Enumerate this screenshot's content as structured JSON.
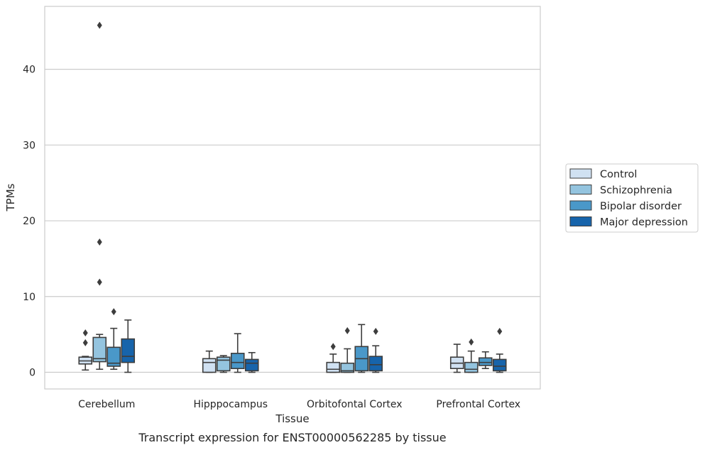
{
  "chart_data": {
    "type": "boxplot",
    "xlabel": "Tissue",
    "ylabel": "TPMs",
    "caption": "Transcript expression for ENST00000562285 by tissue",
    "ylim": [
      -2.2,
      48.3
    ],
    "yticks": [
      "0",
      "10",
      "20",
      "30",
      "40"
    ],
    "grid": "horizontal",
    "legend_placement": "right",
    "categories": [
      "Cerebellum",
      "Hipppocampus",
      "Orbitofontal Cortex",
      "Prefrontal Cortex"
    ],
    "series": [
      {
        "name": "Control",
        "color": "#d0e1f2",
        "boxes": [
          {
            "min": 0.3,
            "q1": 1.1,
            "median": 1.5,
            "q3": 2.0,
            "max": 2.1,
            "outliers": [
              3.9,
              5.2
            ]
          },
          {
            "min": 0.0,
            "q1": 0.0,
            "median": 1.3,
            "q3": 1.8,
            "max": 2.8,
            "outliers": []
          },
          {
            "min": 0.0,
            "q1": 0.0,
            "median": 0.4,
            "q3": 1.3,
            "max": 2.4,
            "outliers": [
              3.4
            ]
          },
          {
            "min": 0.0,
            "q1": 0.5,
            "median": 1.2,
            "q3": 2.0,
            "max": 3.7,
            "outliers": []
          }
        ]
      },
      {
        "name": "Schizophrenia",
        "color": "#94c4df",
        "boxes": [
          {
            "min": 0.4,
            "q1": 1.4,
            "median": 1.8,
            "q3": 4.6,
            "max": 5.0,
            "outliers": [
              11.9,
              17.2,
              45.8
            ]
          },
          {
            "min": 0.0,
            "q1": 0.2,
            "median": 1.6,
            "q3": 2.0,
            "max": 2.2,
            "outliers": []
          },
          {
            "min": 0.0,
            "q1": 0.0,
            "median": 0.2,
            "q3": 1.2,
            "max": 3.1,
            "outliers": [
              5.5
            ]
          },
          {
            "min": 0.0,
            "q1": 0.0,
            "median": 0.4,
            "q3": 1.3,
            "max": 2.8,
            "outliers": [
              4.0
            ]
          }
        ]
      },
      {
        "name": "Bipolar disorder",
        "color": "#4a98c9",
        "boxes": [
          {
            "min": 0.4,
            "q1": 0.8,
            "median": 1.2,
            "q3": 3.3,
            "max": 5.8,
            "outliers": [
              8.0
            ]
          },
          {
            "min": 0.0,
            "q1": 0.5,
            "median": 1.3,
            "q3": 2.5,
            "max": 5.1,
            "outliers": []
          },
          {
            "min": 0.0,
            "q1": 0.2,
            "median": 1.8,
            "q3": 3.4,
            "max": 6.3,
            "outliers": []
          },
          {
            "min": 0.5,
            "q1": 0.9,
            "median": 1.3,
            "q3": 1.9,
            "max": 2.7,
            "outliers": []
          }
        ]
      },
      {
        "name": "Major depression",
        "color": "#1764ab",
        "boxes": [
          {
            "min": 0.0,
            "q1": 1.3,
            "median": 2.1,
            "q3": 4.4,
            "max": 6.9,
            "outliers": []
          },
          {
            "min": 0.0,
            "q1": 0.2,
            "median": 1.2,
            "q3": 1.7,
            "max": 2.6,
            "outliers": []
          },
          {
            "min": 0.0,
            "q1": 0.2,
            "median": 1.0,
            "q3": 2.1,
            "max": 3.5,
            "outliers": [
              5.4
            ]
          },
          {
            "min": 0.0,
            "q1": 0.2,
            "median": 0.8,
            "q3": 1.7,
            "max": 2.4,
            "outliers": [
              5.4
            ]
          }
        ]
      }
    ]
  }
}
